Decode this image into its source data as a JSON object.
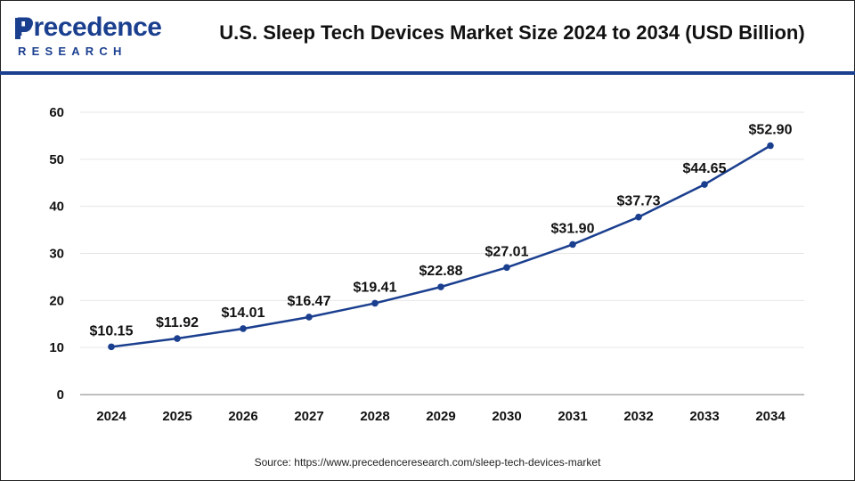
{
  "header": {
    "logo_word": "Precedence",
    "logo_sub": "RESEARCH",
    "title": "U.S. Sleep Tech Devices Market Size 2024 to 2034 (USD Billion)"
  },
  "source": "Source: https://www.precedenceresearch.com/sleep-tech-devices-market",
  "colors": {
    "line": "#1b3f8f",
    "brand": "#1b3f8f",
    "grid": "#e6e6e6"
  },
  "chart_data": {
    "type": "line",
    "title": "U.S. Sleep Tech Devices Market Size 2024 to 2034 (USD Billion)",
    "xlabel": "",
    "ylabel": "",
    "categories": [
      "2024",
      "2025",
      "2026",
      "2027",
      "2028",
      "2029",
      "2030",
      "2031",
      "2032",
      "2033",
      "2034"
    ],
    "values": [
      10.15,
      11.92,
      14.01,
      16.47,
      19.41,
      22.88,
      27.01,
      31.9,
      37.73,
      44.65,
      52.9
    ],
    "data_labels": [
      "$10.15",
      "$11.92",
      "$14.01",
      "$16.47",
      "$19.41",
      "$22.88",
      "$27.01",
      "$31.90",
      "$37.73",
      "$44.65",
      "$52.90"
    ],
    "ylim": [
      0,
      60
    ],
    "yticks": [
      0,
      10,
      20,
      30,
      40,
      50,
      60
    ],
    "grid": true,
    "legend": "none"
  }
}
